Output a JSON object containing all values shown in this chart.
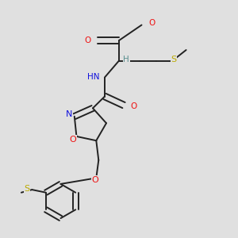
{
  "bg_color": "#e0e0e0",
  "bond_color": "#222222",
  "bond_width": 1.4,
  "colors": {
    "O": "#ee1111",
    "N": "#1111dd",
    "S": "#bbaa00",
    "H": "#5a9090",
    "C": "#222222"
  },
  "font_size": 7.5
}
